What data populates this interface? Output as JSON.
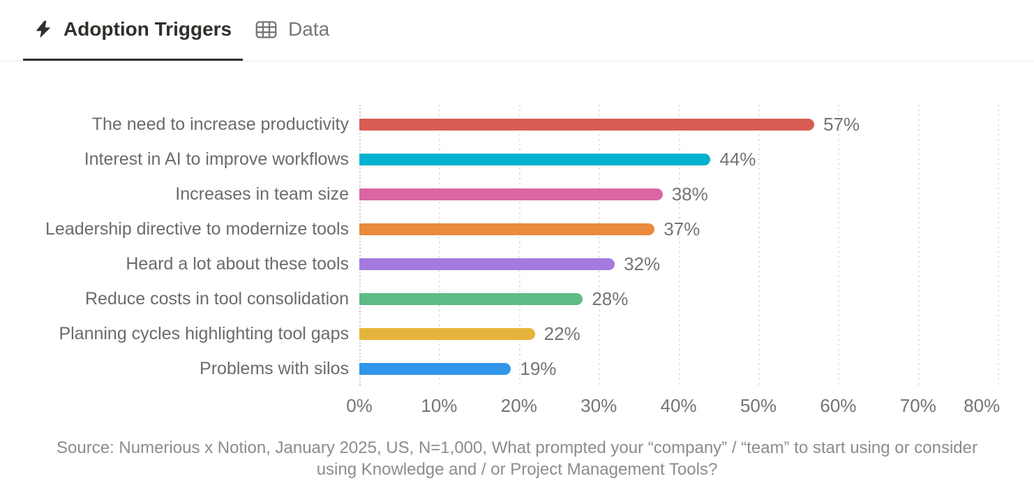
{
  "tabs": [
    {
      "label": "Adoption Triggers",
      "icon": "lightning-bolt-icon",
      "active": true
    },
    {
      "label": "Data",
      "icon": "table-icon",
      "active": false
    }
  ],
  "chart_data": {
    "type": "bar",
    "orientation": "horizontal",
    "title": "Adoption Triggers",
    "categories": [
      "The need to increase productivity",
      "Interest in AI to improve workflows",
      "Increases in team size",
      "Leadership directive to modernize tools",
      "Heard a lot about these tools",
      "Reduce costs in tool consolidation",
      "Planning cycles highlighting tool gaps",
      "Problems with silos"
    ],
    "values": [
      57,
      44,
      38,
      37,
      32,
      28,
      22,
      19
    ],
    "value_labels": [
      "57%",
      "44%",
      "38%",
      "37%",
      "32%",
      "28%",
      "22%",
      "19%"
    ],
    "colors": [
      "#d85c54",
      "#02b2ce",
      "#da64a4",
      "#e98a3c",
      "#a47ae0",
      "#5dbb86",
      "#e5b43a",
      "#2f96e9"
    ],
    "xlim": [
      0,
      80
    ],
    "x_ticks": [
      "0%",
      "10%",
      "20%",
      "30%",
      "40%",
      "50%",
      "60%",
      "70%",
      "80%"
    ],
    "grid": "vertical-dotted",
    "legend": "none"
  },
  "source": "Source: Numerious x Notion, January 2025, US, N=1,000, What prompted your “company” / “team” to start using or consider using Knowledge and / or Project Management Tools?",
  "colors": {
    "tab_active_text": "#312f2b",
    "tab_inactive_text": "#787774",
    "category_label_text": "#6b6b6b",
    "tick_and_value_text": "#747474",
    "source_text": "#8c8c8c",
    "gridline": "#dcdcdc",
    "tab_border": "#e9e9e7"
  }
}
